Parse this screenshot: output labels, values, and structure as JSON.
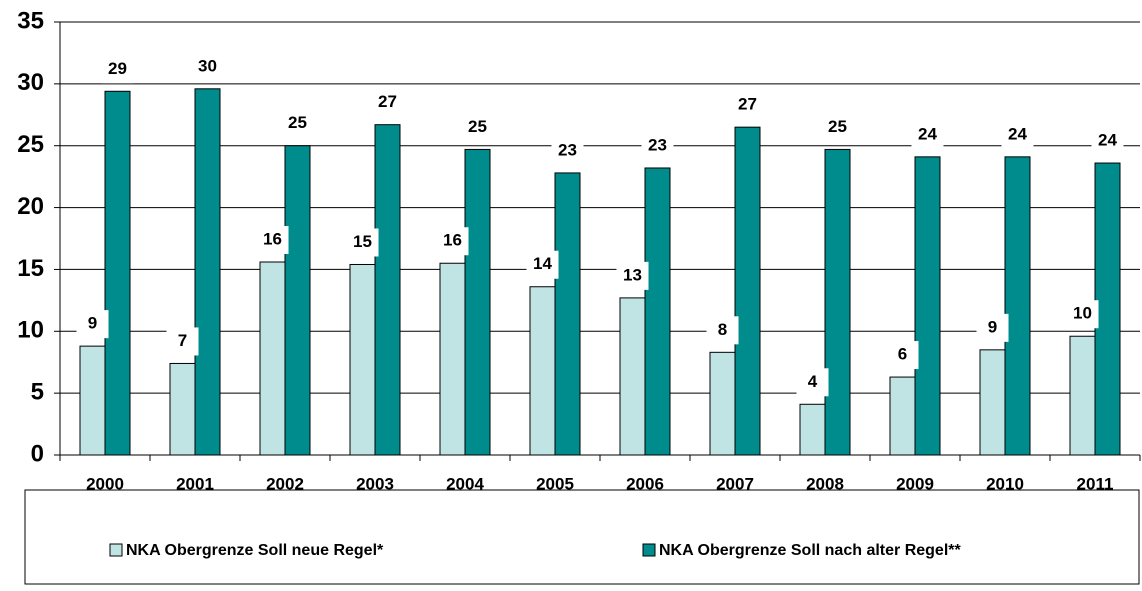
{
  "chart_data": {
    "type": "bar",
    "categories": [
      "2000",
      "2001",
      "2002",
      "2003",
      "2004",
      "2005",
      "2006",
      "2007",
      "2008",
      "2009",
      "2010",
      "2011"
    ],
    "series": [
      {
        "name": "NKA Obergrenze Soll neue Regel*",
        "color": "#c0e4e4",
        "values": [
          8.8,
          7.4,
          15.6,
          15.4,
          15.5,
          13.6,
          12.7,
          8.3,
          4.1,
          6.3,
          8.5,
          9.6
        ],
        "value_labels": [
          "9",
          "7",
          "16",
          "15",
          "16",
          "14",
          "13",
          "8",
          "4",
          "6",
          "9",
          "10"
        ]
      },
      {
        "name": "NKA Obergrenze Soll nach alter Regel**",
        "color": "#008c8c",
        "values": [
          29.4,
          29.6,
          25.0,
          26.7,
          24.7,
          22.8,
          23.2,
          26.5,
          24.7,
          24.1,
          24.1,
          23.6
        ],
        "value_labels": [
          "29",
          "30",
          "25",
          "27",
          "25",
          "23",
          "23",
          "27",
          "25",
          "24",
          "24",
          "24"
        ]
      }
    ],
    "ylim": [
      0,
      35
    ],
    "yticks": [
      0,
      5,
      10,
      15,
      20,
      25,
      30,
      35
    ],
    "grid": true
  }
}
